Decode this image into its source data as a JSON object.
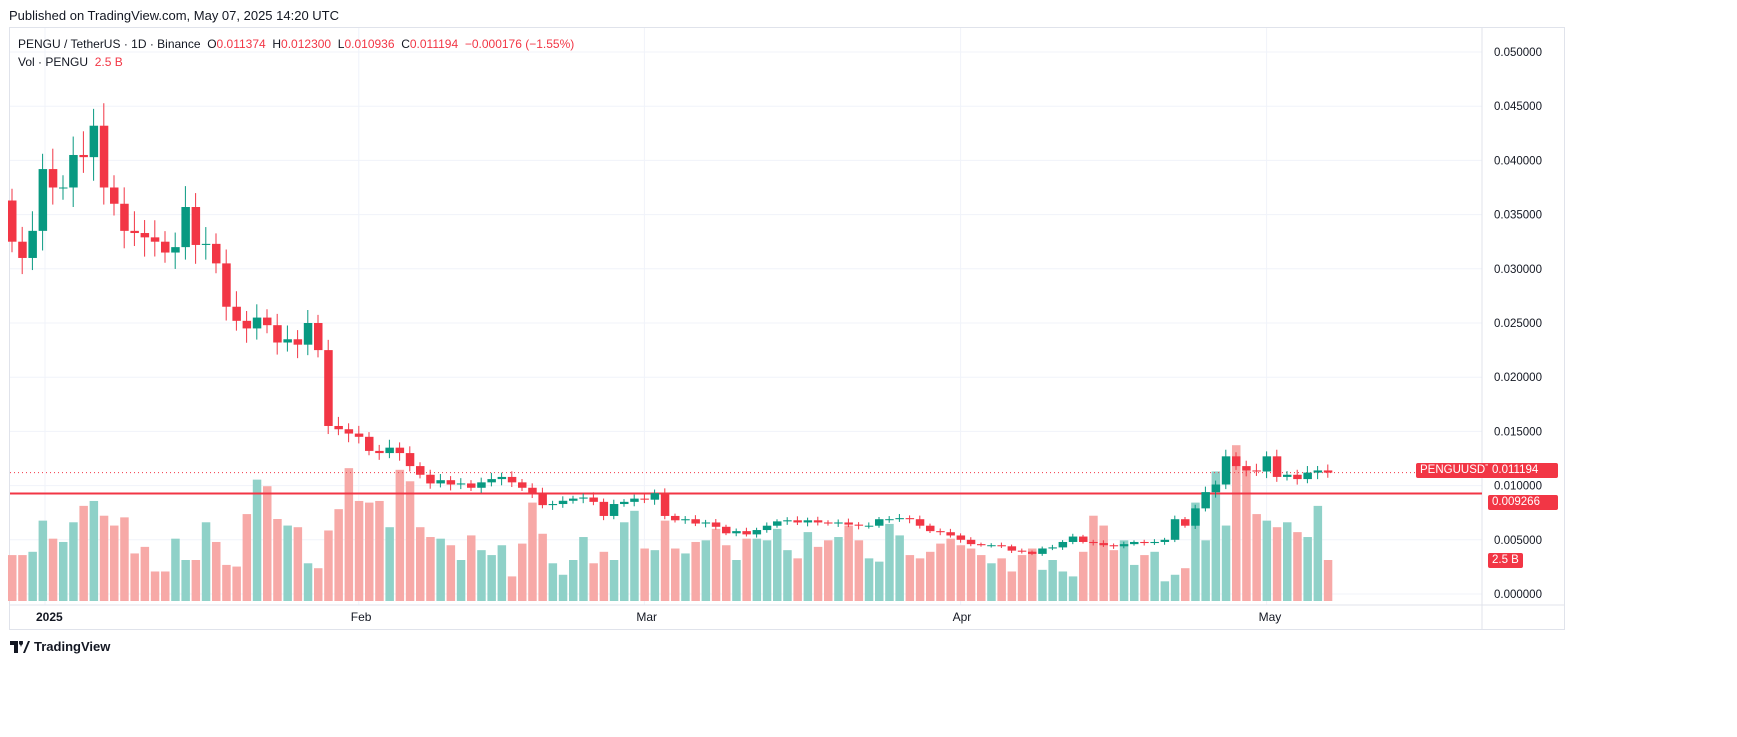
{
  "published": "Published on TradingView.com, May 07, 2025 14:20 UTC",
  "legend": {
    "symbol": "PENGU / TetherUS · 1D · Binance",
    "o_label": "O",
    "o": "0.011374",
    "h_label": "H",
    "h": "0.012300",
    "l_label": "L",
    "l": "0.010936",
    "c_label": "C",
    "c": "0.011194",
    "change": "−0.000176 (−1.55%)",
    "vol_label": "Vol · PENGU",
    "vol": "2.5 B"
  },
  "tags": {
    "symbol": "PENGUUSDT",
    "last_price": "0.011194",
    "line_price": "0.009266",
    "volume": "2.5 B"
  },
  "footer": {
    "brand": "TradingView"
  },
  "colors": {
    "up": "#089981",
    "down": "#f23645",
    "vol_up": "#8fd1c8",
    "vol_down": "#f7a9a7",
    "grid": "#f0f3fa"
  },
  "chart_data": {
    "type": "candlestick",
    "title": "PENGU / TetherUS · 1D · Binance",
    "first_open": 0.0363,
    "close": [
      0.0325,
      0.031,
      0.0335,
      0.0392,
      0.0375,
      0.0375,
      0.0405,
      0.0403,
      0.0432,
      0.0375,
      0.036,
      0.0335,
      0.0333,
      0.0329,
      0.0325,
      0.0315,
      0.032,
      0.0357,
      0.0322,
      0.0323,
      0.0305,
      0.0265,
      0.0252,
      0.0245,
      0.0255,
      0.0248,
      0.0232,
      0.0235,
      0.023,
      0.025,
      0.0225,
      0.0155,
      0.0152,
      0.0148,
      0.0145,
      0.0132,
      0.013,
      0.0135,
      0.013,
      0.0118,
      0.011,
      0.0102,
      0.0105,
      0.0101,
      0.0102,
      0.0098,
      0.0103,
      0.0106,
      0.0108,
      0.0103,
      0.0098,
      0.0093,
      0.0082,
      0.0083,
      0.0086,
      0.0088,
      0.0089,
      0.0085,
      0.0072,
      0.0083,
      0.0085,
      0.0088,
      0.0087,
      0.0093,
      0.0072,
      0.0068,
      0.0069,
      0.0065,
      0.0066,
      0.0062,
      0.0056,
      0.0058,
      0.0055,
      0.0059,
      0.0063,
      0.0067,
      0.0068,
      0.0066,
      0.0068,
      0.0066,
      0.0065,
      0.0066,
      0.0064,
      0.0063,
      0.0063,
      0.0069,
      0.0069,
      0.007,
      0.0069,
      0.0063,
      0.0058,
      0.0057,
      0.0054,
      0.005,
      0.0046,
      0.0045,
      0.0045,
      0.0044,
      0.004,
      0.0039,
      0.0037,
      0.0042,
      0.0043,
      0.0048,
      0.0053,
      0.0048,
      0.0047,
      0.0045,
      0.0044,
      0.0046,
      0.0048,
      0.0047,
      0.0048,
      0.005,
      0.0069,
      0.0063,
      0.0079,
      0.0094,
      0.0101,
      0.0127,
      0.0118,
      0.0114,
      0.0113,
      0.0127,
      0.0108,
      0.011,
      0.0106,
      0.0112,
      0.0114,
      0.011194
    ],
    "volume_b": [
      2.8,
      2.8,
      3.0,
      4.9,
      3.8,
      3.6,
      4.8,
      5.8,
      6.1,
      5.2,
      4.6,
      5.1,
      2.9,
      3.3,
      1.8,
      1.8,
      3.8,
      2.5,
      2.5,
      4.8,
      3.6,
      2.2,
      2.1,
      5.3,
      7.4,
      7.0,
      5.0,
      4.6,
      4.5,
      2.3,
      2.0,
      4.3,
      5.6,
      8.1,
      6.1,
      6.0,
      6.1,
      4.5,
      8.0,
      7.3,
      4.5,
      3.9,
      3.8,
      3.4,
      2.5,
      4.0,
      3.1,
      2.8,
      3.4,
      1.5,
      3.5,
      6.0,
      4.1,
      2.3,
      1.6,
      2.5,
      3.9,
      2.3,
      3.0,
      2.5,
      4.8,
      5.5,
      3.2,
      3.1,
      4.9,
      3.2,
      2.9,
      3.6,
      3.7,
      4.4,
      3.4,
      2.5,
      3.8,
      3.8,
      3.7,
      4.4,
      3.1,
      2.6,
      4.2,
      3.3,
      3.7,
      3.9,
      4.6,
      3.7,
      2.6,
      2.4,
      4.7,
      4.0,
      2.8,
      2.6,
      3.0,
      3.5,
      3.8,
      3.4,
      3.2,
      2.8,
      2.3,
      2.6,
      1.8,
      2.8,
      3.2,
      1.9,
      2.5,
      1.8,
      1.5,
      3.0,
      5.2,
      4.6,
      3.1,
      3.7,
      2.2,
      2.8,
      3.0,
      1.2,
      1.6,
      2.0,
      6.0,
      3.7,
      7.9,
      4.6,
      9.5,
      8.0,
      5.3,
      4.9,
      4.5,
      4.8,
      4.2,
      3.9,
      5.8,
      2.5
    ],
    "ylim": [
      0,
      0.05
    ],
    "y_ticks": [
      "0.050000",
      "0.045000",
      "0.040000",
      "0.035000",
      "0.030000",
      "0.025000",
      "0.020000",
      "0.015000",
      "0.010000",
      "0.005000",
      "0.000000"
    ],
    "y_tick_values": [
      0.05,
      0.045,
      0.04,
      0.035,
      0.03,
      0.025,
      0.02,
      0.015,
      0.01,
      0.005,
      0
    ],
    "x_ticks": [
      {
        "label": "2025",
        "index": 3
      },
      {
        "label": "Feb",
        "index": 34
      },
      {
        "label": "Mar",
        "index": 62
      },
      {
        "label": "Apr",
        "index": 93
      },
      {
        "label": "May",
        "index": 123
      }
    ],
    "horizontal_line": 0.009266
  }
}
